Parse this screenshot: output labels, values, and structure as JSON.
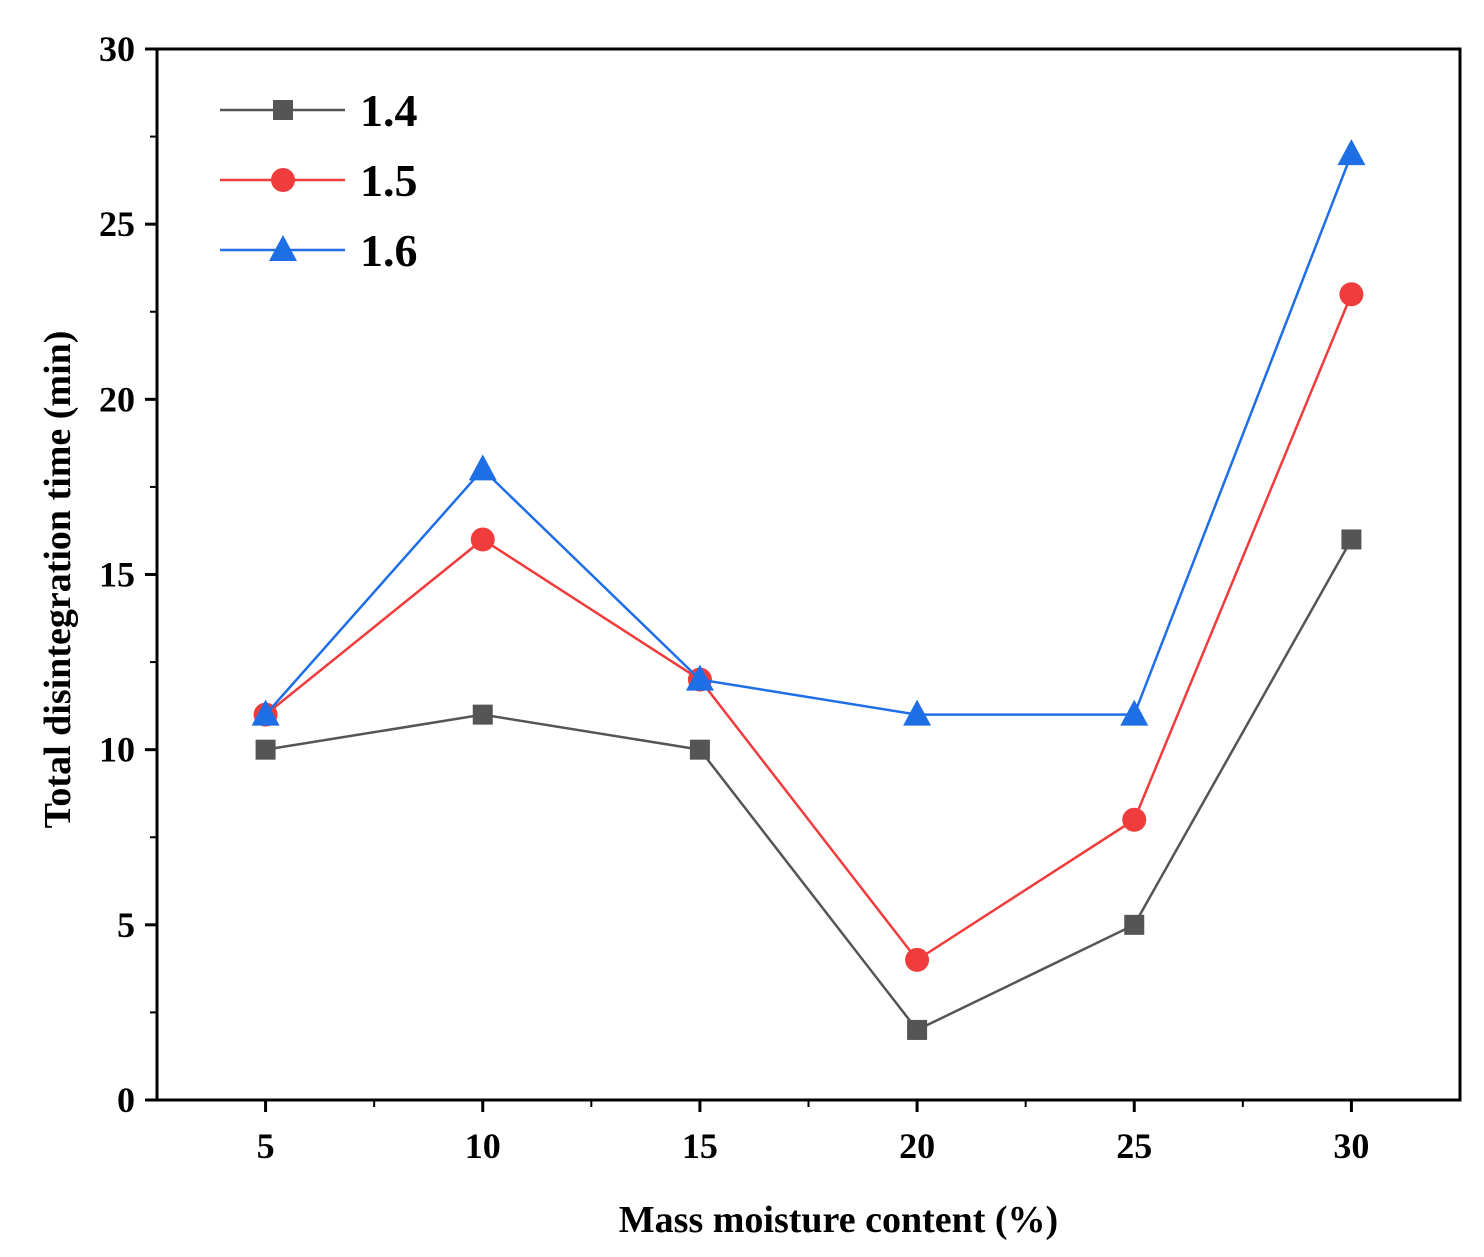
{
  "chart_data": {
    "type": "line",
    "title": "",
    "xlabel": "Mass moisture content (%)",
    "ylabel": "Total disintegration time (min)",
    "x": [
      5,
      10,
      15,
      20,
      25,
      30
    ],
    "x_tick_labels": [
      "5",
      "10",
      "15",
      "20",
      "25",
      "30"
    ],
    "y_tick_labels": [
      "0",
      "5",
      "10",
      "15",
      "20",
      "25",
      "30"
    ],
    "xlim": [
      2.5,
      32.5
    ],
    "ylim": [
      0,
      30
    ],
    "grid": false,
    "legend_position": "top-left",
    "series": [
      {
        "name": "1.4",
        "marker": "square",
        "color": "#555555",
        "values": [
          10,
          11,
          10,
          2,
          5,
          16
        ]
      },
      {
        "name": "1.5",
        "marker": "circle",
        "color": "#f03c3c",
        "values": [
          11,
          16,
          12,
          4,
          8,
          23
        ]
      },
      {
        "name": "1.6",
        "marker": "triangle",
        "color": "#1e6ee6",
        "values": [
          11,
          18,
          12,
          11,
          11,
          27
        ]
      }
    ]
  }
}
